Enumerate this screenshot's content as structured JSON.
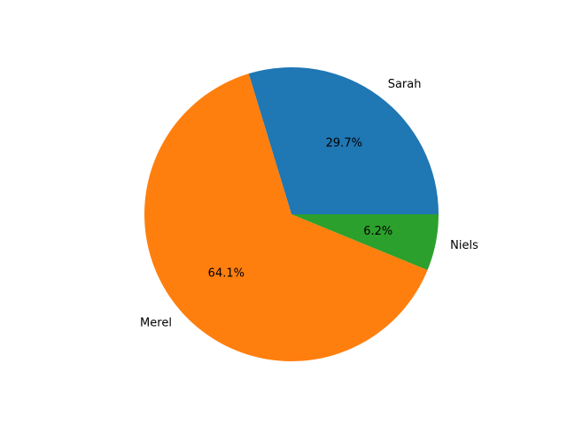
{
  "chart_data": {
    "type": "pie",
    "categories": [
      "Sarah",
      "Merel",
      "Niels"
    ],
    "values": [
      29.7,
      64.1,
      6.2
    ],
    "percent_labels": [
      "29.7%",
      "64.1%",
      "6.2%"
    ],
    "colors": [
      "#1f77b4",
      "#ff7f0e",
      "#2ca02c"
    ],
    "start_angle_deg": 0,
    "direction": "counterclockwise",
    "title": "",
    "legend": "none"
  }
}
